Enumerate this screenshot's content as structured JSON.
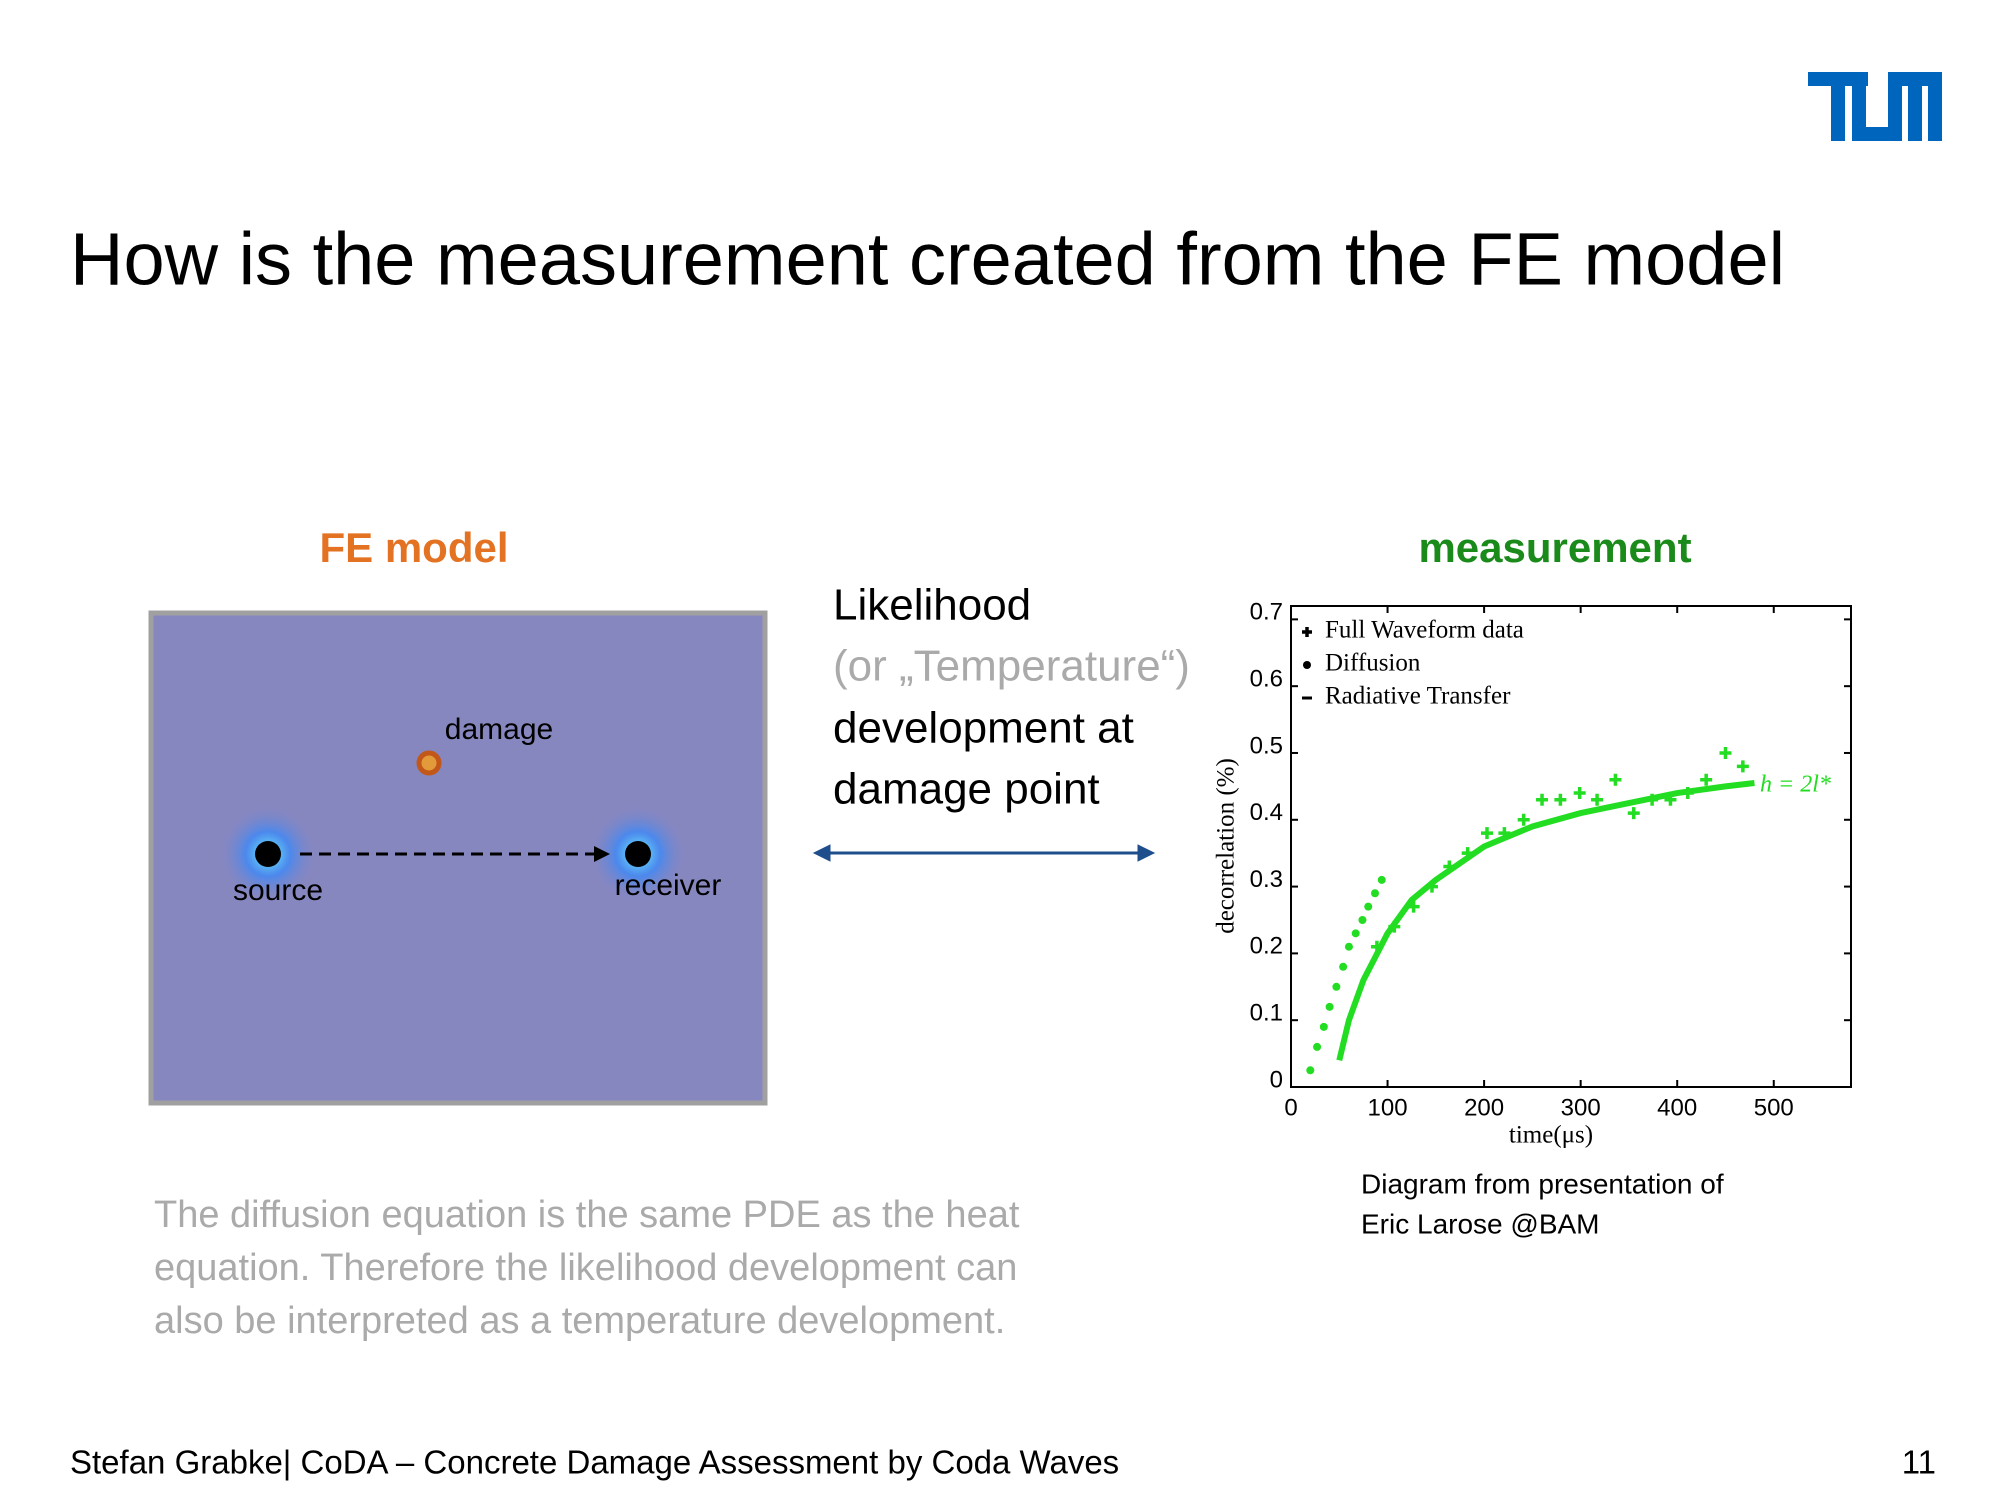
{
  "header": {
    "title": "How is the measurement created from the FE model"
  },
  "fe_model": {
    "heading": "FE model",
    "damage": "damage",
    "source": "source",
    "receiver": "receiver"
  },
  "likelihood": {
    "lines": [
      "Likelihood",
      "(or „Temperature“)",
      "development at",
      "damage point"
    ]
  },
  "measurement": {
    "heading": "measurement",
    "caption": [
      "Diagram from presentation of",
      "Eric Larose @BAM"
    ]
  },
  "note": {
    "lines": [
      "The diffusion equation is the same PDE as the heat",
      "equation. Therefore the likelihood development can",
      "also be interpreted as a temperature development."
    ]
  },
  "footer": {
    "text": "Stefan Grabke| CoDA – Concrete Damage Assessment by Coda Waves",
    "page": "11"
  },
  "chart_data": {
    "type": "scatter",
    "x_label": "time(μs)",
    "y_label": "decorrelation (%)",
    "annotation": "h = 2l*",
    "xlim": [
      0,
      580
    ],
    "ylim": [
      0,
      0.72
    ],
    "xticks": [
      0,
      100,
      200,
      300,
      400,
      500
    ],
    "yticks": [
      0,
      0.1,
      0.2,
      0.3,
      0.4,
      0.5,
      0.6,
      0.7
    ],
    "series": [
      {
        "name": "Full Waveform data",
        "marker": "plus",
        "color": "#22dd22",
        "x": [
          89,
          107,
          127,
          146,
          164,
          183,
          203,
          221,
          241,
          260,
          279,
          299,
          317,
          336,
          355,
          374,
          393,
          411,
          430,
          450,
          468
        ],
        "values": [
          0.21,
          0.24,
          0.27,
          0.3,
          0.33,
          0.35,
          0.38,
          0.38,
          0.4,
          0.43,
          0.43,
          0.44,
          0.43,
          0.46,
          0.41,
          0.43,
          0.43,
          0.44,
          0.46,
          0.5,
          0.48
        ]
      },
      {
        "name": "Diffusion",
        "marker": "dot",
        "color": "#22dd22",
        "x": [
          20,
          27,
          34,
          40,
          47,
          54,
          60,
          67,
          74,
          80,
          87,
          94
        ],
        "values": [
          0.025,
          0.06,
          0.09,
          0.12,
          0.15,
          0.18,
          0.21,
          0.23,
          0.25,
          0.27,
          0.29,
          0.31
        ]
      },
      {
        "name": "Radiative Transfer",
        "marker": "line",
        "color": "#22dd22",
        "x": [
          50,
          60,
          75,
          100,
          125,
          150,
          200,
          250,
          300,
          350,
          400,
          450,
          480
        ],
        "values": [
          0.04,
          0.1,
          0.16,
          0.23,
          0.28,
          0.31,
          0.36,
          0.39,
          0.41,
          0.425,
          0.44,
          0.45,
          0.455
        ]
      }
    ]
  }
}
